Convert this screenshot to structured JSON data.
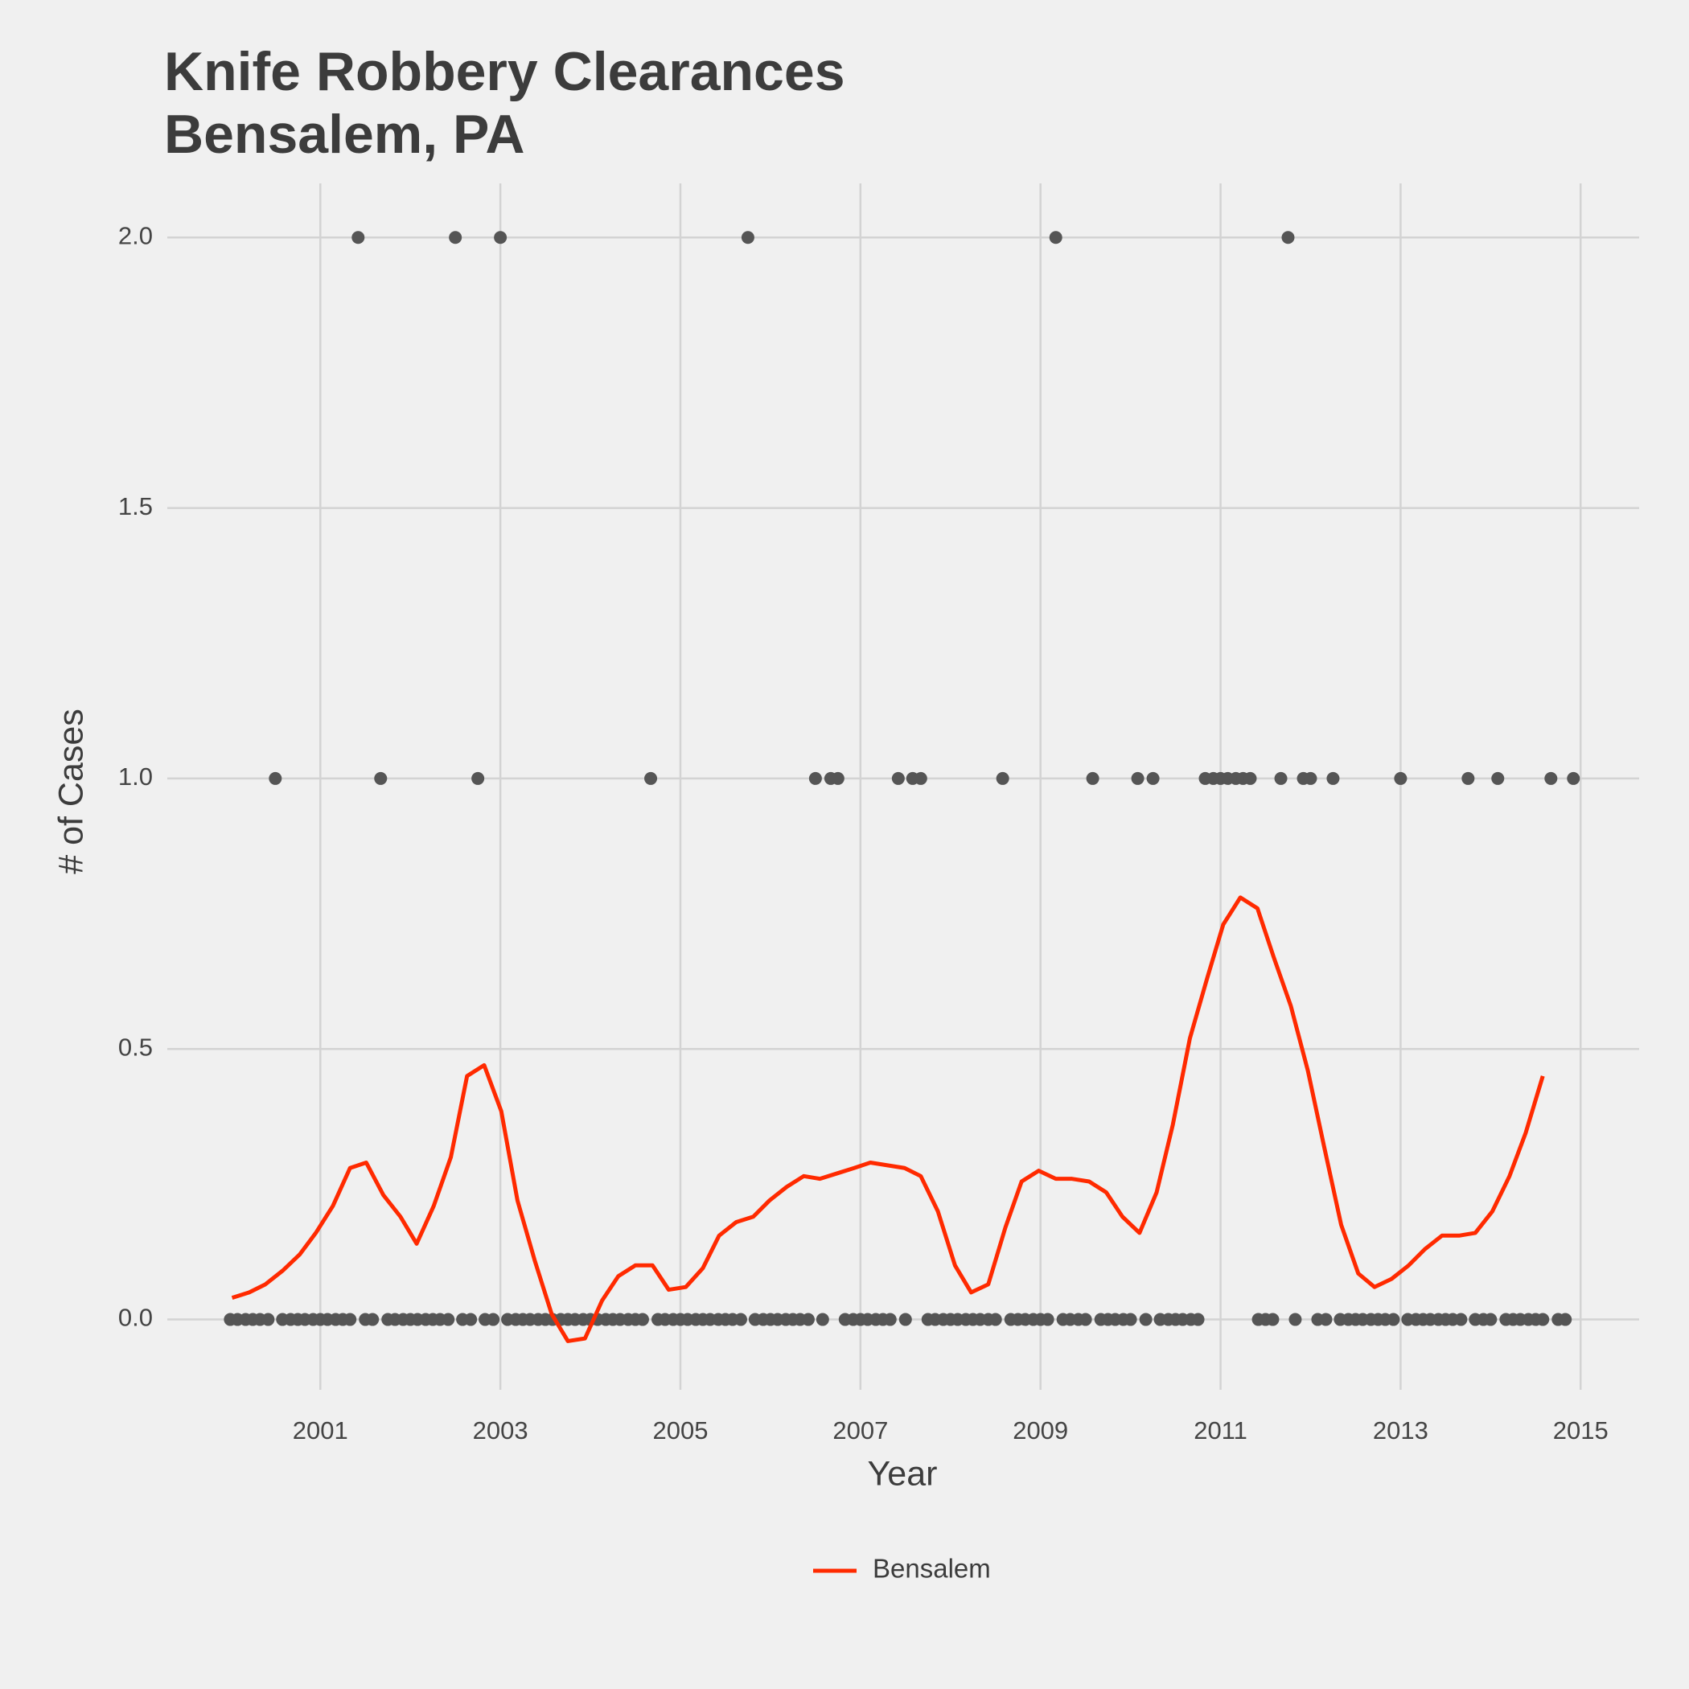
{
  "chart_data": {
    "type": "line",
    "title": [
      "Knife Robbery Clearances",
      "Bensalem, PA"
    ],
    "x_label": "Year",
    "y_label": "# of Cases",
    "xlim": [
      1999.3,
      2015.65
    ],
    "ylim": [
      -0.13,
      2.1
    ],
    "xticks": [
      2001,
      2003,
      2005,
      2007,
      2009,
      2011,
      2013,
      2015
    ],
    "yticks": [
      {
        "value": 0,
        "label": "0.0"
      },
      {
        "value": 0.5,
        "label": "0.5"
      },
      {
        "value": 1,
        "label": "1.0"
      },
      {
        "value": 1.5,
        "label": "1.5"
      },
      {
        "value": 2,
        "label": "2.0"
      }
    ],
    "grid": true,
    "legend": "bottom",
    "series": [
      {
        "name": "Bensalem",
        "color": "#ff2a00",
        "x": [
          2000.02,
          2000.21,
          2000.39,
          2000.58,
          2000.77,
          2000.95,
          2001.14,
          2001.33,
          2001.51,
          2001.7,
          2001.89,
          2002.07,
          2002.26,
          2002.45,
          2002.63,
          2002.82,
          2003.01,
          2003.19,
          2003.38,
          2003.57,
          2003.75,
          2003.94,
          2004.13,
          2004.31,
          2004.5,
          2004.69,
          2004.87,
          2005.06,
          2005.25,
          2005.43,
          2005.62,
          2005.81,
          2005.99,
          2006.18,
          2006.37,
          2006.55,
          2006.74,
          2006.93,
          2007.11,
          2007.3,
          2007.49,
          2007.67,
          2007.86,
          2008.05,
          2008.23,
          2008.42,
          2008.61,
          2008.79,
          2008.98,
          2009.17,
          2009.35,
          2009.54,
          2009.73,
          2009.91,
          2010.1,
          2010.29,
          2010.47,
          2010.66,
          2010.85,
          2011.03,
          2011.22,
          2011.41,
          2011.59,
          2011.78,
          2011.97,
          2012.15,
          2012.34,
          2012.53,
          2012.71,
          2012.9,
          2013.09,
          2013.27,
          2013.46,
          2013.65,
          2013.83,
          2014.02,
          2014.21,
          2014.39,
          2014.58
        ],
        "values": [
          0.04,
          0.05,
          0.065,
          0.09,
          0.12,
          0.16,
          0.21,
          0.28,
          0.29,
          0.23,
          0.19,
          0.14,
          0.21,
          0.3,
          0.45,
          0.47,
          0.385,
          0.22,
          0.11,
          0.01,
          -0.04,
          -0.035,
          0.035,
          0.08,
          0.1,
          0.1,
          0.055,
          0.06,
          0.095,
          0.155,
          0.18,
          0.19,
          0.22,
          0.245,
          0.265,
          0.26,
          0.27,
          0.28,
          0.29,
          0.285,
          0.28,
          0.265,
          0.2,
          0.1,
          0.05,
          0.065,
          0.17,
          0.255,
          0.275,
          0.26,
          0.26,
          0.255,
          0.235,
          0.19,
          0.16,
          0.235,
          0.36,
          0.52,
          0.63,
          0.73,
          0.78,
          0.76,
          0.67,
          0.58,
          0.46,
          0.32,
          0.175,
          0.085,
          0.06,
          0.075,
          0.1,
          0.13,
          0.155,
          0.155,
          0.16,
          0.2,
          0.265,
          0.345,
          0.45
        ]
      }
    ],
    "points": {
      "type": "scatter",
      "color": "#555555",
      "x": [
        2000,
        2000.08,
        2000.17,
        2000.25,
        2000.33,
        2000.42,
        2000.5,
        2000.58,
        2000.67,
        2000.75,
        2000.83,
        2000.92,
        2001,
        2001.08,
        2001.17,
        2001.25,
        2001.33,
        2001.42,
        2001.5,
        2001.58,
        2001.67,
        2001.75,
        2001.83,
        2001.92,
        2002,
        2002.08,
        2002.17,
        2002.25,
        2002.33,
        2002.42,
        2002.5,
        2002.58,
        2002.67,
        2002.75,
        2002.83,
        2002.92,
        2003,
        2003.08,
        2003.17,
        2003.25,
        2003.33,
        2003.42,
        2003.5,
        2003.58,
        2003.67,
        2003.75,
        2003.83,
        2003.92,
        2004,
        2004.08,
        2004.17,
        2004.25,
        2004.33,
        2004.42,
        2004.5,
        2004.58,
        2004.67,
        2004.75,
        2004.83,
        2004.92,
        2005,
        2005.08,
        2005.17,
        2005.25,
        2005.33,
        2005.42,
        2005.5,
        2005.58,
        2005.67,
        2005.75,
        2005.83,
        2005.92,
        2006,
        2006.08,
        2006.17,
        2006.25,
        2006.33,
        2006.42,
        2006.5,
        2006.58,
        2006.67,
        2006.75,
        2006.83,
        2006.92,
        2007,
        2007.08,
        2007.17,
        2007.25,
        2007.33,
        2007.42,
        2007.5,
        2007.58,
        2007.67,
        2007.75,
        2007.83,
        2007.92,
        2008,
        2008.08,
        2008.17,
        2008.25,
        2008.33,
        2008.42,
        2008.5,
        2008.58,
        2008.67,
        2008.75,
        2008.83,
        2008.92,
        2009,
        2009.08,
        2009.17,
        2009.25,
        2009.33,
        2009.42,
        2009.5,
        2009.58,
        2009.67,
        2009.75,
        2009.83,
        2009.92,
        2010,
        2010.08,
        2010.17,
        2010.25,
        2010.33,
        2010.42,
        2010.5,
        2010.58,
        2010.67,
        2010.75,
        2010.83,
        2010.92,
        2011,
        2011.08,
        2011.17,
        2011.25,
        2011.33,
        2011.42,
        2011.5,
        2011.58,
        2011.67,
        2011.75,
        2011.83,
        2011.92,
        2012,
        2012.08,
        2012.17,
        2012.25,
        2012.33,
        2012.42,
        2012.5,
        2012.58,
        2012.67,
        2012.75,
        2012.83,
        2012.92,
        2013,
        2013.08,
        2013.17,
        2013.25,
        2013.33,
        2013.42,
        2013.5,
        2013.58,
        2013.67,
        2013.75,
        2013.83,
        2013.92,
        2014,
        2014.08,
        2014.17,
        2014.25,
        2014.33,
        2014.42,
        2014.5,
        2014.58,
        2014.67,
        2014.75,
        2014.83,
        2014.92
      ],
      "values": [
        0,
        0,
        0,
        0,
        0,
        0,
        1,
        0,
        0,
        0,
        0,
        0,
        0,
        0,
        0,
        0,
        0,
        2,
        0,
        0,
        1,
        0,
        0,
        0,
        0,
        0,
        0,
        0,
        0,
        0,
        2,
        0,
        0,
        1,
        0,
        0,
        2,
        0,
        0,
        0,
        0,
        0,
        0,
        0,
        0,
        0,
        0,
        0,
        0,
        0,
        0,
        0,
        0,
        0,
        0,
        0,
        1,
        0,
        0,
        0,
        0,
        0,
        0,
        0,
        0,
        0,
        0,
        0,
        0,
        2,
        0,
        0,
        0,
        0,
        0,
        0,
        0,
        0,
        1,
        0,
        1,
        1,
        0,
        0,
        0,
        0,
        0,
        0,
        0,
        1,
        0,
        1,
        1,
        0,
        0,
        0,
        0,
        0,
        0,
        0,
        0,
        0,
        0,
        1,
        0,
        0,
        0,
        0,
        0,
        0,
        2,
        0,
        0,
        0,
        0,
        1,
        0,
        0,
        0,
        0,
        0,
        1,
        0,
        1,
        0,
        0,
        0,
        0,
        0,
        0,
        1,
        1,
        1,
        1,
        1,
        1,
        1,
        0,
        0,
        0,
        1,
        2,
        0,
        1,
        1,
        0,
        0,
        1,
        0,
        0,
        0,
        0,
        0,
        0,
        0,
        0,
        1,
        0,
        0,
        0,
        0,
        0,
        0,
        0,
        0,
        1,
        0,
        0,
        0,
        1,
        0,
        0,
        0,
        0,
        0,
        0,
        1,
        0,
        0,
        1
      ]
    }
  }
}
